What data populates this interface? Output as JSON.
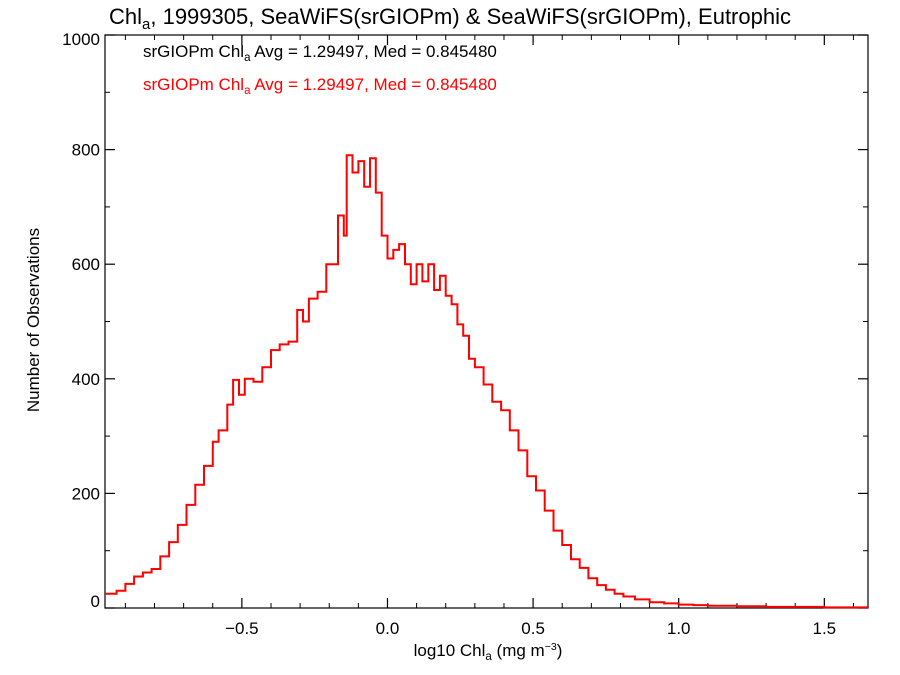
{
  "title": {
    "pre": "Chl",
    "sub": "a",
    "post": ", 1999305, SeaWiFS(srGIOPm) & SeaWiFS(srGIOPm), Eutrophic"
  },
  "annotations": [
    {
      "pre": "srGIOPm Chl",
      "sub": "a",
      "post": " Avg = 1.29497, Med = 0.845480",
      "color": "#000000"
    },
    {
      "pre": "srGIOPm Chl",
      "sub": "a",
      "post": " Avg = 1.29497, Med = 0.845480",
      "color": "#ff0000"
    }
  ],
  "axes": {
    "ylabel": "Number of Observations",
    "xlabel": {
      "pre": "log10 Chl",
      "sub": "a",
      "post": " (mg m",
      "sup": "−3",
      "end": ")"
    }
  },
  "chart_data": {
    "type": "histogram",
    "xlim": [
      -0.97,
      1.65
    ],
    "ylim": [
      0,
      1000
    ],
    "xticks": [
      -0.5,
      0.0,
      0.5,
      1.0,
      1.5
    ],
    "xtick_labels": [
      "−0.5",
      "0.0",
      "0.5",
      "1.0",
      "1.5"
    ],
    "yticks": [
      0,
      200,
      400,
      600,
      800,
      1000
    ],
    "ytick_labels": [
      "0",
      "200",
      "400",
      "600",
      "800",
      "1000"
    ],
    "series": [
      {
        "color": "#ff0000",
        "points": [
          [
            -0.97,
            25
          ],
          [
            -0.93,
            30
          ],
          [
            -0.9,
            42
          ],
          [
            -0.87,
            55
          ],
          [
            -0.84,
            62
          ],
          [
            -0.81,
            68
          ],
          [
            -0.78,
            90
          ],
          [
            -0.75,
            115
          ],
          [
            -0.72,
            145
          ],
          [
            -0.69,
            180
          ],
          [
            -0.66,
            215
          ],
          [
            -0.63,
            248
          ],
          [
            -0.6,
            290
          ],
          [
            -0.58,
            310
          ],
          [
            -0.55,
            355
          ],
          [
            -0.53,
            398
          ],
          [
            -0.51,
            372
          ],
          [
            -0.49,
            400
          ],
          [
            -0.46,
            395
          ],
          [
            -0.43,
            420
          ],
          [
            -0.4,
            450
          ],
          [
            -0.37,
            460
          ],
          [
            -0.34,
            465
          ],
          [
            -0.31,
            520
          ],
          [
            -0.29,
            500
          ],
          [
            -0.27,
            540
          ],
          [
            -0.24,
            552
          ],
          [
            -0.21,
            600
          ],
          [
            -0.19,
            600
          ],
          [
            -0.17,
            685
          ],
          [
            -0.15,
            650
          ],
          [
            -0.14,
            790
          ],
          [
            -0.12,
            760
          ],
          [
            -0.1,
            780
          ],
          [
            -0.08,
            735
          ],
          [
            -0.06,
            785
          ],
          [
            -0.04,
            725
          ],
          [
            -0.02,
            650
          ],
          [
            0.0,
            610
          ],
          [
            0.02,
            625
          ],
          [
            0.04,
            635
          ],
          [
            0.06,
            600
          ],
          [
            0.08,
            565
          ],
          [
            0.1,
            600
          ],
          [
            0.12,
            570
          ],
          [
            0.14,
            600
          ],
          [
            0.16,
            555
          ],
          [
            0.18,
            580
          ],
          [
            0.2,
            545
          ],
          [
            0.22,
            530
          ],
          [
            0.24,
            495
          ],
          [
            0.26,
            475
          ],
          [
            0.28,
            435
          ],
          [
            0.3,
            420
          ],
          [
            0.33,
            390
          ],
          [
            0.36,
            360
          ],
          [
            0.39,
            345
          ],
          [
            0.42,
            310
          ],
          [
            0.45,
            275
          ],
          [
            0.48,
            230
          ],
          [
            0.51,
            205
          ],
          [
            0.54,
            170
          ],
          [
            0.57,
            135
          ],
          [
            0.6,
            110
          ],
          [
            0.63,
            85
          ],
          [
            0.66,
            70
          ],
          [
            0.69,
            52
          ],
          [
            0.72,
            40
          ],
          [
            0.75,
            32
          ],
          [
            0.78,
            25
          ],
          [
            0.81,
            20
          ],
          [
            0.85,
            15
          ],
          [
            0.9,
            10
          ],
          [
            0.95,
            8
          ],
          [
            1.0,
            6
          ],
          [
            1.05,
            5
          ],
          [
            1.1,
            4
          ],
          [
            1.2,
            3
          ],
          [
            1.3,
            2
          ],
          [
            1.4,
            2
          ],
          [
            1.5,
            1
          ],
          [
            1.65,
            1
          ]
        ]
      }
    ]
  }
}
